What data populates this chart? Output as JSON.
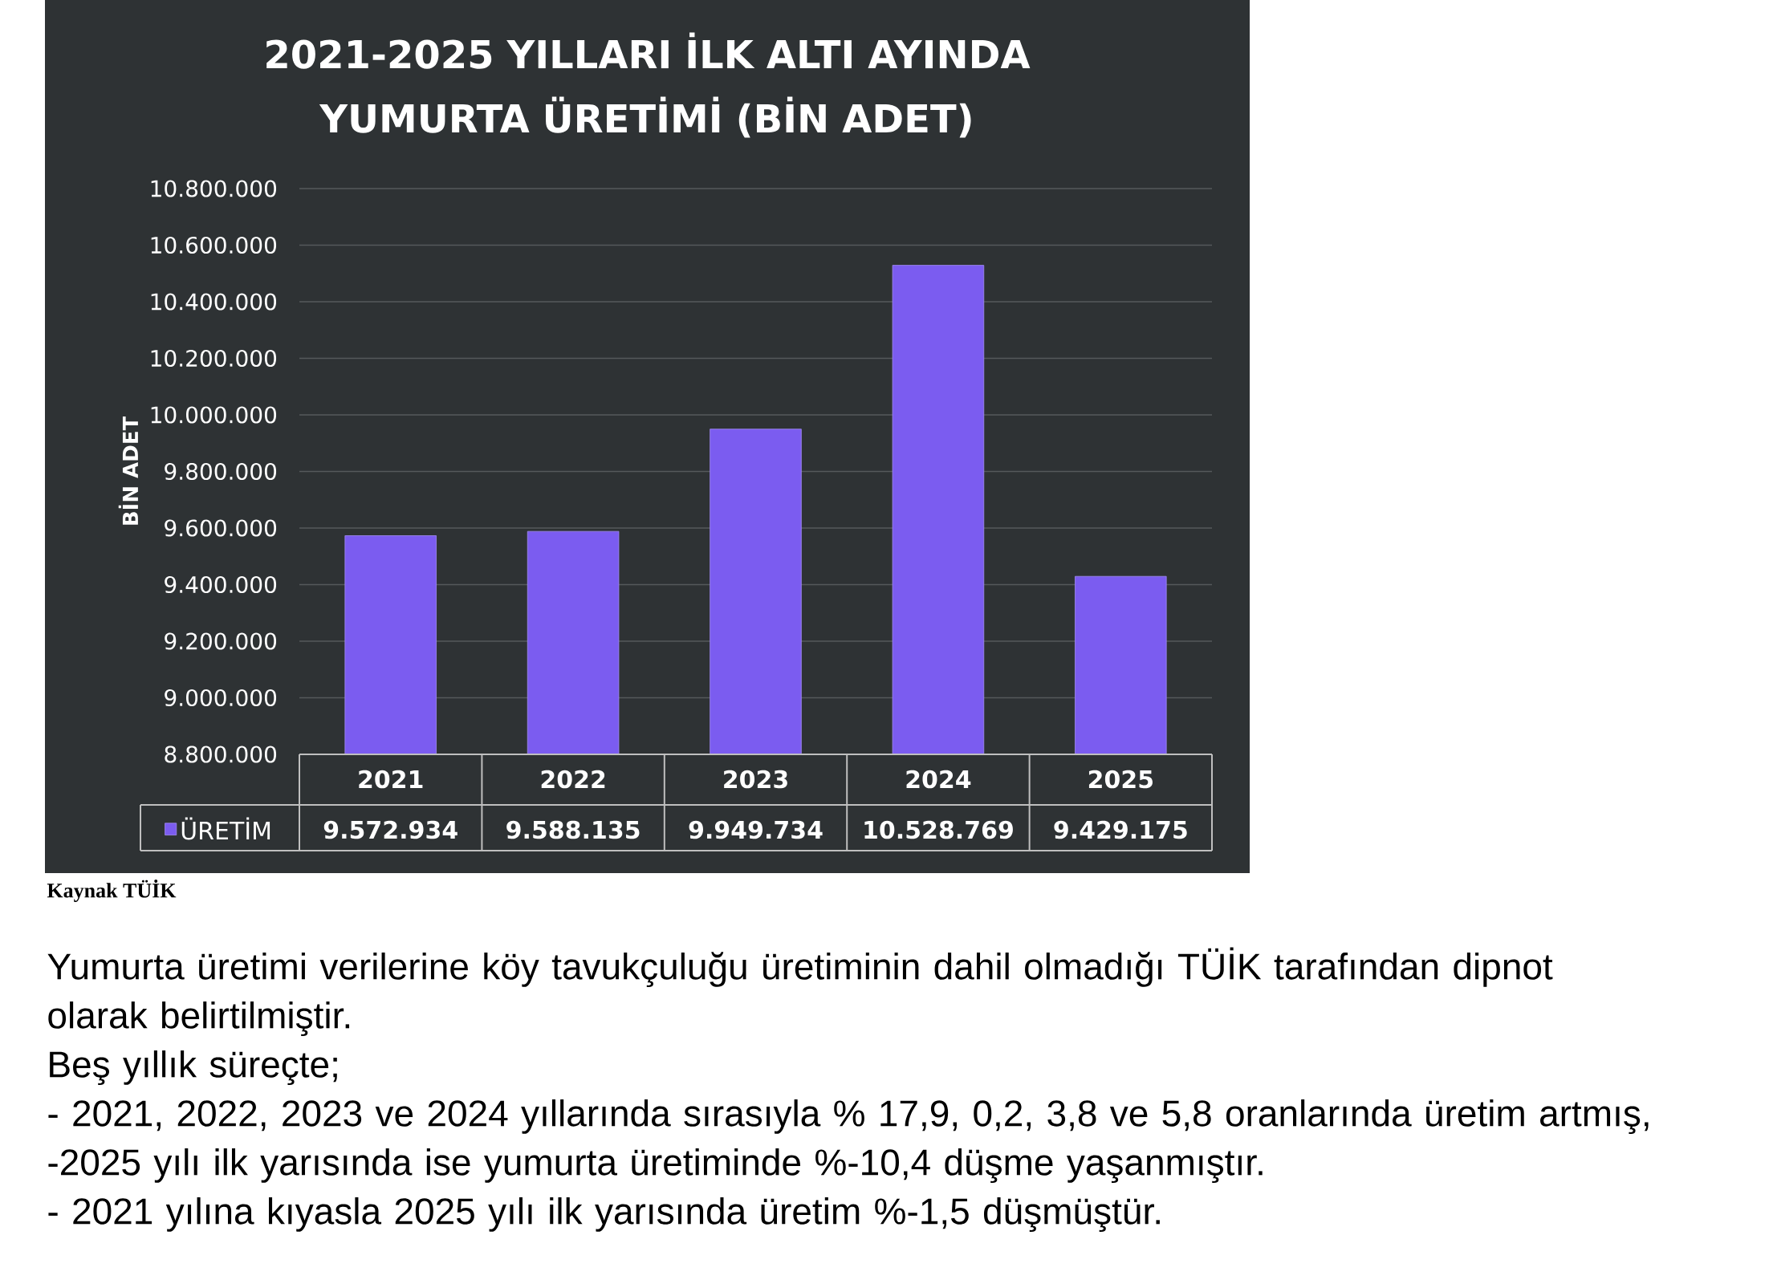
{
  "chart_data": {
    "type": "bar",
    "title": "2021-2025 YILLARI İLK ALTI AYINDA YUMURTA ÜRETİMİ (BİN ADET)",
    "ylabel": "BİN ADET",
    "categories": [
      "2021",
      "2022",
      "2023",
      "2024",
      "2025"
    ],
    "series": [
      {
        "name": "ÜRETİM",
        "color": "#7b5cf0",
        "values": [
          9572934,
          9588135,
          9949734,
          10528769,
          9429175
        ],
        "value_labels": [
          "9.572.934",
          "9.588.135",
          "9.949.734",
          "10.528.769",
          "9.429.175"
        ]
      }
    ],
    "ylim": [
      8800000,
      10800000
    ],
    "yticks": [
      {
        "value": 8800000,
        "label": "8.800.000"
      },
      {
        "value": 9000000,
        "label": "9.000.000"
      },
      {
        "value": 9200000,
        "label": "9.200.000"
      },
      {
        "value": 9400000,
        "label": "9.400.000"
      },
      {
        "value": 9600000,
        "label": "9.600.000"
      },
      {
        "value": 9800000,
        "label": "9.800.000"
      },
      {
        "value": 10000000,
        "label": "10.000.000"
      },
      {
        "value": 10200000,
        "label": "10.200.000"
      },
      {
        "value": 10400000,
        "label": "10.400.000"
      },
      {
        "value": 10600000,
        "label": "10.600.000"
      },
      {
        "value": 10800000,
        "label": "10.800.000"
      }
    ],
    "grid": "y",
    "legend": "bottom left",
    "annotations": [
      "Kaynak TÜİK",
      "Yumurta üretimi verilerine köy tavukçuluğu üretiminin dahil olmadığı TÜİK tarafından dipnot olarak belirtilmiştir.",
      "Beş yıllık süreçte;",
      "- 2021, 2022, 2023 ve 2024 yıllarında sırasıyla % 17,9, 0,2, 3,8 ve 5,8 oranlarında üretim artmış,",
      "-2025 yılı ilk yarısında ise yumurta üretiminde %-10,4 düşme yaşanmıştır.",
      "- 2021 yılına kıyasla 2025 yılı ilk yarısında üretim %-1,5 düşmüştür."
    ]
  }
}
